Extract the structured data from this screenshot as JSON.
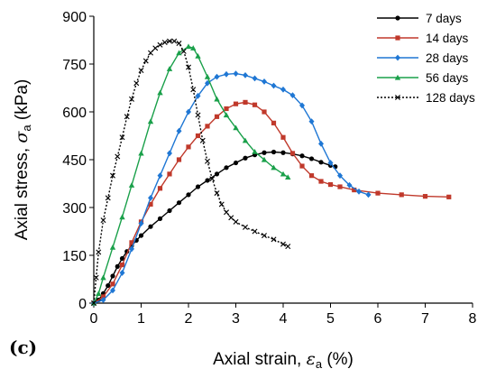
{
  "chart_data": {
    "type": "line",
    "panel_label": "(c)",
    "xlabel": {
      "prefix": "Axial strain, ",
      "symbol": "ε",
      "sub": "a",
      "suffix": " (%)"
    },
    "ylabel": {
      "prefix": "Axial stress, ",
      "symbol": "σ",
      "sub": "a",
      "suffix": " (kPa)"
    },
    "xlim": [
      0,
      8
    ],
    "ylim": [
      0,
      900
    ],
    "xticks": [
      "0",
      "1",
      "2",
      "3",
      "4",
      "5",
      "6",
      "7",
      "8"
    ],
    "yticks": [
      "0",
      "150",
      "300",
      "450",
      "600",
      "750",
      "900"
    ],
    "grid": false,
    "legend_position": "top-right",
    "series": [
      {
        "name": "7 days",
        "color": "#000000",
        "marker": "circle",
        "dash": "solid",
        "points": [
          [
            0,
            0
          ],
          [
            0.1,
            10
          ],
          [
            0.2,
            30
          ],
          [
            0.3,
            55
          ],
          [
            0.4,
            85
          ],
          [
            0.5,
            115
          ],
          [
            0.6,
            140
          ],
          [
            0.7,
            162
          ],
          [
            0.8,
            180
          ],
          [
            0.9,
            197
          ],
          [
            1.0,
            212
          ],
          [
            1.2,
            240
          ],
          [
            1.4,
            265
          ],
          [
            1.6,
            290
          ],
          [
            1.8,
            315
          ],
          [
            2.0,
            340
          ],
          [
            2.2,
            365
          ],
          [
            2.4,
            385
          ],
          [
            2.6,
            405
          ],
          [
            2.8,
            425
          ],
          [
            3.0,
            440
          ],
          [
            3.2,
            455
          ],
          [
            3.4,
            465
          ],
          [
            3.6,
            472
          ],
          [
            3.8,
            474
          ],
          [
            4.0,
            472
          ],
          [
            4.2,
            468
          ],
          [
            4.4,
            462
          ],
          [
            4.6,
            453
          ],
          [
            4.8,
            442
          ],
          [
            5.0,
            432
          ],
          [
            5.1,
            428
          ]
        ]
      },
      {
        "name": "14 days",
        "color": "#c0392b",
        "marker": "square",
        "dash": "solid",
        "points": [
          [
            0,
            0
          ],
          [
            0.2,
            20
          ],
          [
            0.4,
            60
          ],
          [
            0.6,
            120
          ],
          [
            0.8,
            190
          ],
          [
            1.0,
            255
          ],
          [
            1.2,
            310
          ],
          [
            1.4,
            360
          ],
          [
            1.6,
            405
          ],
          [
            1.8,
            450
          ],
          [
            2.0,
            490
          ],
          [
            2.2,
            525
          ],
          [
            2.4,
            555
          ],
          [
            2.6,
            585
          ],
          [
            2.8,
            610
          ],
          [
            3.0,
            625
          ],
          [
            3.2,
            630
          ],
          [
            3.4,
            622
          ],
          [
            3.6,
            600
          ],
          [
            3.8,
            565
          ],
          [
            4.0,
            520
          ],
          [
            4.2,
            470
          ],
          [
            4.4,
            430
          ],
          [
            4.6,
            400
          ],
          [
            4.8,
            382
          ],
          [
            5.0,
            372
          ],
          [
            5.2,
            365
          ],
          [
            5.5,
            355
          ],
          [
            6.0,
            345
          ],
          [
            6.5,
            340
          ],
          [
            7.0,
            335
          ],
          [
            7.5,
            333
          ]
        ]
      },
      {
        "name": "28 days",
        "color": "#1f77d4",
        "marker": "diamond",
        "dash": "solid",
        "points": [
          [
            0,
            0
          ],
          [
            0.2,
            10
          ],
          [
            0.4,
            40
          ],
          [
            0.6,
            95
          ],
          [
            0.8,
            170
          ],
          [
            1.0,
            250
          ],
          [
            1.2,
            330
          ],
          [
            1.4,
            400
          ],
          [
            1.6,
            470
          ],
          [
            1.8,
            540
          ],
          [
            2.0,
            600
          ],
          [
            2.2,
            650
          ],
          [
            2.4,
            690
          ],
          [
            2.6,
            710
          ],
          [
            2.8,
            718
          ],
          [
            3.0,
            720
          ],
          [
            3.2,
            715
          ],
          [
            3.4,
            705
          ],
          [
            3.6,
            695
          ],
          [
            3.8,
            682
          ],
          [
            4.0,
            670
          ],
          [
            4.2,
            652
          ],
          [
            4.4,
            620
          ],
          [
            4.6,
            570
          ],
          [
            4.8,
            500
          ],
          [
            5.0,
            440
          ],
          [
            5.2,
            400
          ],
          [
            5.4,
            370
          ],
          [
            5.6,
            350
          ],
          [
            5.8,
            340
          ]
        ]
      },
      {
        "name": "56 days",
        "color": "#1aa04a",
        "marker": "triangle",
        "dash": "solid",
        "points": [
          [
            0,
            0
          ],
          [
            0.1,
            30
          ],
          [
            0.2,
            80
          ],
          [
            0.4,
            175
          ],
          [
            0.6,
            270
          ],
          [
            0.8,
            370
          ],
          [
            1.0,
            470
          ],
          [
            1.2,
            570
          ],
          [
            1.4,
            660
          ],
          [
            1.6,
            735
          ],
          [
            1.8,
            785
          ],
          [
            2.0,
            805
          ],
          [
            2.1,
            800
          ],
          [
            2.2,
            775
          ],
          [
            2.4,
            710
          ],
          [
            2.6,
            640
          ],
          [
            2.8,
            590
          ],
          [
            3.0,
            550
          ],
          [
            3.2,
            510
          ],
          [
            3.4,
            475
          ],
          [
            3.6,
            450
          ],
          [
            3.8,
            425
          ],
          [
            4.0,
            405
          ],
          [
            4.1,
            395
          ]
        ]
      },
      {
        "name": "128 days",
        "color": "#000000",
        "marker": "cross",
        "dash": "dotted",
        "points": [
          [
            0,
            0
          ],
          [
            0.05,
            80
          ],
          [
            0.1,
            160
          ],
          [
            0.2,
            260
          ],
          [
            0.3,
            330
          ],
          [
            0.4,
            400
          ],
          [
            0.5,
            460
          ],
          [
            0.6,
            520
          ],
          [
            0.7,
            585
          ],
          [
            0.8,
            640
          ],
          [
            0.9,
            690
          ],
          [
            1.0,
            730
          ],
          [
            1.1,
            760
          ],
          [
            1.2,
            785
          ],
          [
            1.3,
            800
          ],
          [
            1.4,
            810
          ],
          [
            1.5,
            818
          ],
          [
            1.6,
            822
          ],
          [
            1.7,
            822
          ],
          [
            1.8,
            815
          ],
          [
            1.9,
            790
          ],
          [
            2.0,
            740
          ],
          [
            2.1,
            670
          ],
          [
            2.2,
            590
          ],
          [
            2.3,
            510
          ],
          [
            2.4,
            445
          ],
          [
            2.5,
            390
          ],
          [
            2.6,
            345
          ],
          [
            2.7,
            310
          ],
          [
            2.8,
            285
          ],
          [
            2.9,
            268
          ],
          [
            3.0,
            255
          ],
          [
            3.2,
            238
          ],
          [
            3.4,
            225
          ],
          [
            3.6,
            212
          ],
          [
            3.8,
            200
          ],
          [
            4.0,
            185
          ],
          [
            4.1,
            178
          ]
        ]
      }
    ]
  }
}
